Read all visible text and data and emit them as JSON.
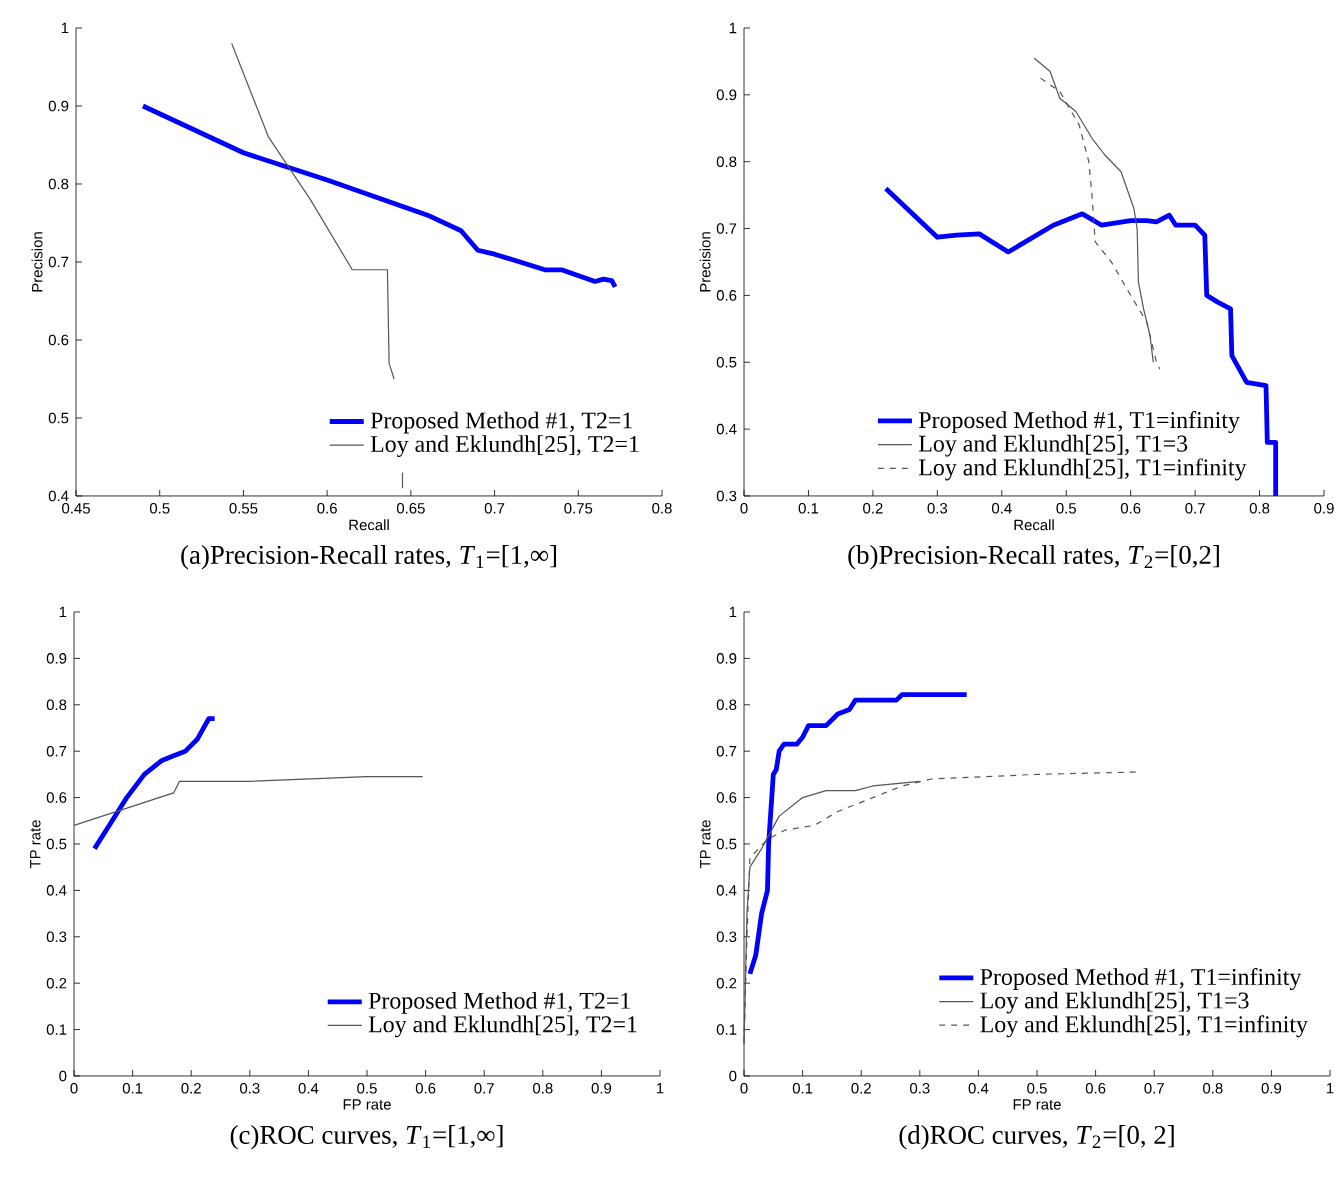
{
  "chart_data": [
    {
      "type": "line",
      "title": "(a)Precision-Recall rates, *T*$_{1}$=[1,∞]",
      "xlabel": "Recall",
      "ylabel": "Precision",
      "xlim": [
        0.45,
        0.8
      ],
      "ylim": [
        0.4,
        1
      ],
      "xticks": [
        0.45,
        0.5,
        0.55,
        0.6,
        0.65,
        0.7,
        0.75,
        0.8
      ],
      "yticks": [
        0.4,
        0.5,
        0.6,
        0.7,
        0.8,
        0.9,
        1
      ],
      "legend": "bottom right",
      "series": [
        {
          "name": "Proposed Method #1, T2=1",
          "color": "#0000ff",
          "x": [
            0.49,
            0.55,
            0.6,
            0.66,
            0.68,
            0.69,
            0.7,
            0.73,
            0.74,
            0.76,
            0.765,
            0.77,
            0.772
          ],
          "values": [
            0.9,
            0.84,
            0.805,
            0.76,
            0.74,
            0.715,
            0.71,
            0.69,
            0.69,
            0.675,
            0.678,
            0.676,
            0.668
          ]
        },
        {
          "name": "Loy and Eklundh[25], T2=1",
          "color": "#555555",
          "x": [
            0.543,
            0.565,
            0.59,
            0.615,
            0.636,
            0.637,
            0.64,
            null,
            0.645,
            0.645
          ],
          "values": [
            0.98,
            0.86,
            0.78,
            0.69,
            0.69,
            0.57,
            0.55,
            null,
            0.43,
            0.41
          ]
        }
      ]
    },
    {
      "type": "line",
      "title": "(b)Precision-Recall rates, *T*$_{2}$=[0,2]",
      "xlabel": "Recall",
      "ylabel": "Precision",
      "xlim": [
        0,
        0.9
      ],
      "ylim": [
        0.3,
        1
      ],
      "xticks": [
        0,
        0.1,
        0.2,
        0.3,
        0.4,
        0.5,
        0.6,
        0.7,
        0.8,
        0.9
      ],
      "yticks": [
        0.3,
        0.4,
        0.5,
        0.6,
        0.7,
        0.8,
        0.9,
        1
      ],
      "legend": "bottom",
      "series": [
        {
          "name": "Proposed Method #1, T1=infinity",
          "color": "#0000ff",
          "x": [
            0.22,
            0.3,
            0.33,
            0.365,
            0.41,
            0.48,
            0.525,
            0.555,
            0.6,
            0.625,
            0.64,
            0.66,
            0.67,
            0.7,
            0.715,
            0.718,
            0.735,
            0.755,
            0.757,
            0.78,
            0.81,
            0.812,
            0.825,
            0.825
          ],
          "values": [
            0.76,
            0.687,
            0.69,
            0.692,
            0.665,
            0.705,
            0.722,
            0.705,
            0.712,
            0.712,
            0.71,
            0.72,
            0.705,
            0.705,
            0.69,
            0.6,
            0.59,
            0.58,
            0.51,
            0.47,
            0.465,
            0.38,
            0.38,
            0.3
          ]
        },
        {
          "name": "Loy and Eklundh[25], T1=3",
          "color": "#555555",
          "x": [
            0.45,
            0.475,
            0.49,
            0.515,
            0.54,
            0.56,
            0.585,
            0.605,
            0.61,
            0.612,
            0.62,
            0.63,
            0.635
          ],
          "values": [
            0.955,
            0.935,
            0.895,
            0.875,
            0.835,
            0.81,
            0.785,
            0.73,
            0.7,
            0.62,
            0.58,
            0.54,
            0.5
          ]
        },
        {
          "name": "Loy and Eklundh[25], T1=infinity",
          "color": "#555555",
          "line_style": "dashed",
          "x": [
            0.46,
            0.49,
            0.52,
            0.535,
            0.54,
            0.545,
            0.57,
            0.6,
            0.625,
            0.64,
            0.645
          ],
          "values": [
            0.925,
            0.905,
            0.855,
            0.8,
            0.75,
            0.68,
            0.65,
            0.6,
            0.56,
            0.5,
            0.49
          ]
        }
      ]
    },
    {
      "type": "line",
      "title": "(c)ROC curves, *T*$_{1}$=[1,∞]",
      "xlabel": "FP rate",
      "ylabel": "TP rate",
      "xlim": [
        0,
        1
      ],
      "ylim": [
        0,
        1
      ],
      "xticks": [
        0,
        0.1,
        0.2,
        0.3,
        0.4,
        0.5,
        0.6,
        0.7,
        0.8,
        0.9,
        1
      ],
      "yticks": [
        0,
        0.1,
        0.2,
        0.3,
        0.4,
        0.5,
        0.6,
        0.7,
        0.8,
        0.9,
        1
      ],
      "legend": "bottom right",
      "series": [
        {
          "name": "Proposed Method #1, T2=1",
          "color": "#0000ff",
          "x": [
            0.035,
            0.06,
            0.09,
            0.12,
            0.15,
            0.17,
            0.19,
            0.21,
            0.23,
            0.24
          ],
          "values": [
            0.49,
            0.54,
            0.6,
            0.65,
            0.68,
            0.69,
            0.7,
            0.725,
            0.77,
            0.77
          ]
        },
        {
          "name": "Loy and Eklundh[25], T2=1",
          "color": "#555555",
          "x": [
            0,
            0.17,
            0.18,
            0.3,
            0.5,
            0.595
          ],
          "values": [
            0.54,
            0.61,
            0.635,
            0.635,
            0.645,
            0.645
          ]
        }
      ]
    },
    {
      "type": "line",
      "title": "(d)ROC curves, *T*$_{2}$=[0, 2]",
      "xlabel": "FP rate",
      "ylabel": "TP rate",
      "xlim": [
        0,
        1
      ],
      "ylim": [
        0,
        1
      ],
      "xticks": [
        0,
        0.1,
        0.2,
        0.3,
        0.4,
        0.5,
        0.6,
        0.7,
        0.8,
        0.9,
        1
      ],
      "yticks": [
        0,
        0.1,
        0.2,
        0.3,
        0.4,
        0.5,
        0.6,
        0.7,
        0.8,
        0.9,
        1
      ],
      "legend": "bottom right",
      "series": [
        {
          "name": "Proposed Method #1, T1=infinity",
          "color": "#0000ff",
          "x": [
            0.01,
            0.02,
            0.03,
            0.04,
            0.042,
            0.05,
            0.055,
            0.06,
            0.068,
            0.09,
            0.1,
            0.11,
            0.14,
            0.16,
            0.18,
            0.19,
            0.26,
            0.27,
            0.38
          ],
          "values": [
            0.22,
            0.26,
            0.35,
            0.4,
            0.5,
            0.65,
            0.66,
            0.7,
            0.715,
            0.715,
            0.73,
            0.755,
            0.755,
            0.78,
            0.79,
            0.81,
            0.81,
            0.822,
            0.822
          ]
        },
        {
          "name": "Loy and Eklundh[25], T1=3",
          "color": "#555555",
          "x": [
            0,
            0.005,
            0.01,
            0.03,
            0.06,
            0.1,
            0.14,
            0.19,
            0.22,
            0.3
          ],
          "values": [
            0.07,
            0.35,
            0.45,
            0.49,
            0.56,
            0.6,
            0.615,
            0.615,
            0.625,
            0.635
          ]
        },
        {
          "name": "Loy and Eklundh[25], T1=infinity",
          "color": "#555555",
          "line_style": "dashed",
          "x": [
            0,
            0.005,
            0.01,
            0.04,
            0.07,
            0.12,
            0.16,
            0.22,
            0.27,
            0.32,
            0.5,
            0.67
          ],
          "values": [
            0.07,
            0.3,
            0.47,
            0.51,
            0.53,
            0.54,
            0.57,
            0.6,
            0.625,
            0.64,
            0.65,
            0.655
          ]
        }
      ]
    }
  ]
}
